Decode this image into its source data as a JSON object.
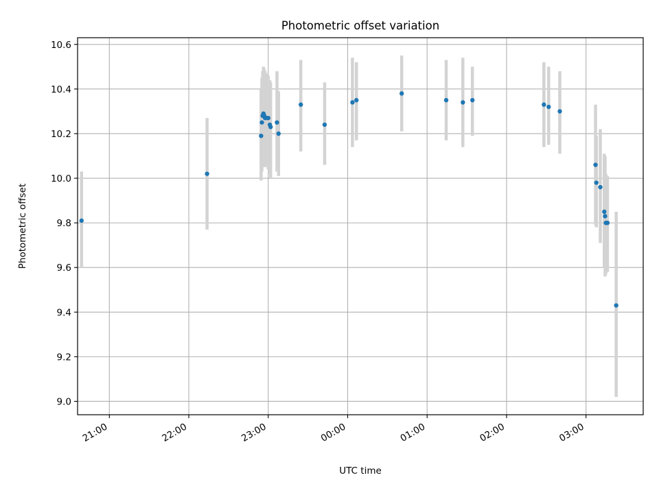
{
  "chart_data": {
    "type": "scatter",
    "title": "Photometric offset variation",
    "xlabel": "UTC time",
    "ylabel": "Photometric offset",
    "x_unit": "UTC time (hours from 00:00; negative = previous evening)",
    "xlim": [
      -3.4,
      3.72
    ],
    "ylim": [
      8.94,
      10.63
    ],
    "x_ticks": [
      {
        "value": -3,
        "label": "21:00"
      },
      {
        "value": -2,
        "label": "22:00"
      },
      {
        "value": -1,
        "label": "23:00"
      },
      {
        "value": 0,
        "label": "00:00"
      },
      {
        "value": 1,
        "label": "01:00"
      },
      {
        "value": 2,
        "label": "02:00"
      },
      {
        "value": 3,
        "label": "03:00"
      }
    ],
    "y_ticks": [
      {
        "value": 9.0,
        "label": "9.0"
      },
      {
        "value": 9.2,
        "label": "9.2"
      },
      {
        "value": 9.4,
        "label": "9.4"
      },
      {
        "value": 9.6,
        "label": "9.6"
      },
      {
        "value": 9.8,
        "label": "9.8"
      },
      {
        "value": 10.0,
        "label": "10.0"
      },
      {
        "value": 10.2,
        "label": "10.2"
      },
      {
        "value": 10.4,
        "label": "10.4"
      },
      {
        "value": 10.6,
        "label": "10.6"
      }
    ],
    "grid": true,
    "colors": {
      "points": "#1f77b4",
      "error_bars": "#d3d3d3",
      "grid": "#b0b0b0"
    },
    "series": [
      {
        "points": [
          {
            "x": -3.35,
            "y": 9.81,
            "lo": 9.6,
            "hi": 10.03
          },
          {
            "x": -1.77,
            "y": 10.02,
            "lo": 9.77,
            "hi": 10.27
          },
          {
            "x": -1.09,
            "y": 10.19,
            "lo": 9.99,
            "hi": 10.4
          },
          {
            "x": -1.08,
            "y": 10.25,
            "lo": 10.03,
            "hi": 10.45
          },
          {
            "x": -1.07,
            "y": 10.28,
            "lo": 10.05,
            "hi": 10.48
          },
          {
            "x": -1.06,
            "y": 10.29,
            "lo": 10.08,
            "hi": 10.5
          },
          {
            "x": -1.05,
            "y": 10.28,
            "lo": 10.06,
            "hi": 10.49
          },
          {
            "x": -1.04,
            "y": 10.27,
            "lo": 10.05,
            "hi": 10.48
          },
          {
            "x": -1.02,
            "y": 10.27,
            "lo": 10.06,
            "hi": 10.47
          },
          {
            "x": -1.0,
            "y": 10.27,
            "lo": 10.04,
            "hi": 10.46
          },
          {
            "x": -0.98,
            "y": 10.24,
            "lo": 10.02,
            "hi": 10.44
          },
          {
            "x": -0.97,
            "y": 10.23,
            "lo": 10.0,
            "hi": 10.43
          },
          {
            "x": -0.89,
            "y": 10.25,
            "lo": 10.03,
            "hi": 10.48
          },
          {
            "x": -0.87,
            "y": 10.2,
            "lo": 10.01,
            "hi": 10.39
          },
          {
            "x": -0.59,
            "y": 10.33,
            "lo": 10.12,
            "hi": 10.53
          },
          {
            "x": -0.29,
            "y": 10.24,
            "lo": 10.06,
            "hi": 10.43
          },
          {
            "x": 0.06,
            "y": 10.34,
            "lo": 10.14,
            "hi": 10.54
          },
          {
            "x": 0.11,
            "y": 10.35,
            "lo": 10.17,
            "hi": 10.52
          },
          {
            "x": 0.68,
            "y": 10.38,
            "lo": 10.21,
            "hi": 10.55
          },
          {
            "x": 1.24,
            "y": 10.35,
            "lo": 10.17,
            "hi": 10.53
          },
          {
            "x": 1.45,
            "y": 10.34,
            "lo": 10.14,
            "hi": 10.54
          },
          {
            "x": 1.57,
            "y": 10.35,
            "lo": 10.19,
            "hi": 10.5
          },
          {
            "x": 2.47,
            "y": 10.33,
            "lo": 10.14,
            "hi": 10.52
          },
          {
            "x": 2.53,
            "y": 10.32,
            "lo": 10.15,
            "hi": 10.5
          },
          {
            "x": 2.67,
            "y": 10.3,
            "lo": 10.11,
            "hi": 10.48
          },
          {
            "x": 3.12,
            "y": 10.06,
            "lo": 9.79,
            "hi": 10.33
          },
          {
            "x": 3.13,
            "y": 9.98,
            "lo": 9.78,
            "hi": 10.19
          },
          {
            "x": 3.18,
            "y": 9.96,
            "lo": 9.71,
            "hi": 10.22
          },
          {
            "x": 3.23,
            "y": 9.85,
            "lo": 9.6,
            "hi": 10.11
          },
          {
            "x": 3.24,
            "y": 9.83,
            "lo": 9.56,
            "hi": 10.1
          },
          {
            "x": 3.25,
            "y": 9.8,
            "lo": 9.57,
            "hi": 10.02
          },
          {
            "x": 3.27,
            "y": 9.8,
            "lo": 9.58,
            "hi": 10.01
          },
          {
            "x": 3.38,
            "y": 9.43,
            "lo": 9.02,
            "hi": 9.85
          }
        ]
      }
    ]
  }
}
